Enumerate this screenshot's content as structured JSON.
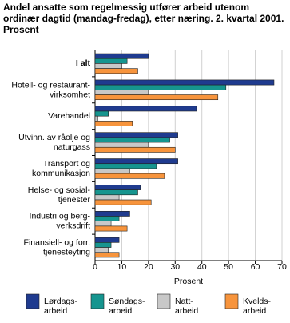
{
  "chart_data": {
    "type": "hbar",
    "title": "Andel ansatte som regelmessig utfører arbeid utenom ordinær dagtid (mandag-fredag), etter næring. 2. kvartal 2001.  Prosent",
    "xlabel": "Prosent",
    "categories": [
      "I alt",
      "Hotell- og restaurant-\nvirksomhet",
      "Varehandel",
      "Utvinn. av råolje og\nnaturgass",
      "Transport og\nkommunikasjon",
      "Helse- og sosial-\ntjenester",
      "Industri og berg-\nverksdrift",
      "Finansiell- og forr.\ntjenesteyting"
    ],
    "series": [
      {
        "name": "Lørdags-\narbeid",
        "color": "#1f3b8f",
        "values": [
          20,
          67,
          38,
          31,
          31,
          17,
          13,
          9
        ]
      },
      {
        "name": "Søndags-\narbeid",
        "color": "#16958f",
        "values": [
          12,
          49,
          5,
          28,
          23,
          16,
          9,
          6
        ]
      },
      {
        "name": "Natt-\narbeid",
        "color": "#c8c8c8",
        "values": [
          10,
          20,
          1,
          20,
          13,
          9,
          6,
          5
        ]
      },
      {
        "name": "Kvelds-\narbeid",
        "color": "#f7943c",
        "values": [
          16,
          46,
          14,
          30,
          26,
          21,
          12,
          9
        ]
      }
    ],
    "xlim": [
      0,
      70
    ],
    "xticks": [
      0,
      10,
      20,
      30,
      40,
      50,
      60,
      70
    ],
    "grid": true
  }
}
